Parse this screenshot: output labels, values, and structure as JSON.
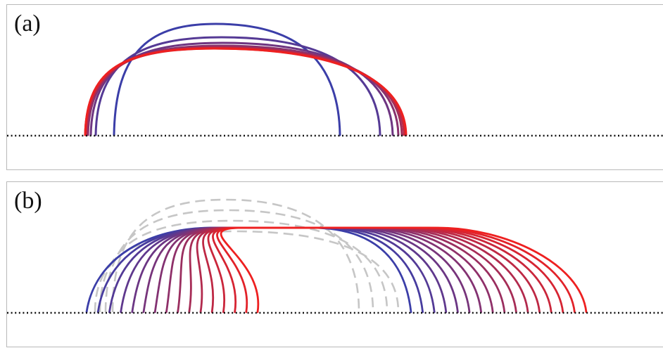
{
  "panels": [
    {
      "id": "a",
      "label": "(a)"
    },
    {
      "id": "b",
      "label": "(b)"
    }
  ],
  "colors": {
    "start": "#3b3ea8",
    "end": "#ee2020",
    "ghost": "#c6c6c6",
    "baseline": "#111111",
    "border": "#b9b9b9"
  },
  "icons": [
    "droplet-profile-curve",
    "baseline-dotted-line"
  ]
}
